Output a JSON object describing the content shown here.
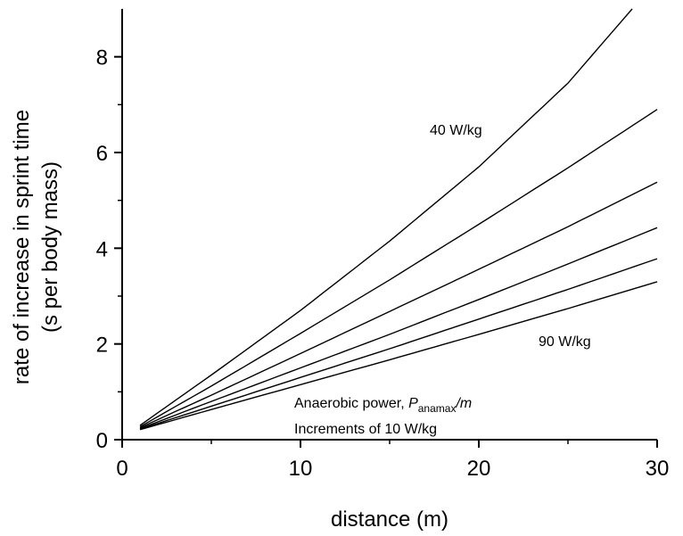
{
  "chart_data": {
    "type": "line",
    "xlabel": "distance (m)",
    "ylabel": [
      "rate of increase in sprint time",
      "(s per body mass)"
    ],
    "xlim": [
      0,
      30
    ],
    "ylim": [
      0,
      9
    ],
    "x_ticks": [
      0,
      10,
      20,
      30
    ],
    "y_ticks": [
      0,
      2,
      4,
      6,
      8
    ],
    "grid": false,
    "legend": "none",
    "series": [
      {
        "x": [
          1,
          5,
          10,
          15,
          20,
          25,
          28.6
        ],
        "y": [
          0.3,
          1.35,
          2.7,
          4.15,
          5.7,
          7.45,
          9.0
        ]
      },
      {
        "x": [
          1,
          5,
          10,
          15,
          20,
          25,
          30
        ],
        "y": [
          0.27,
          1.12,
          2.22,
          3.34,
          4.5,
          5.68,
          6.9
        ]
      },
      {
        "x": [
          1,
          5,
          10,
          15,
          20,
          25,
          30
        ],
        "y": [
          0.25,
          0.93,
          1.8,
          2.68,
          3.56,
          4.45,
          5.38
        ]
      },
      {
        "x": [
          1,
          5,
          10,
          15,
          20,
          25,
          30
        ],
        "y": [
          0.23,
          0.8,
          1.5,
          2.2,
          2.93,
          3.67,
          4.43
        ]
      },
      {
        "x": [
          1,
          5,
          10,
          15,
          20,
          25,
          30
        ],
        "y": [
          0.22,
          0.7,
          1.3,
          1.9,
          2.52,
          3.14,
          3.78
        ]
      },
      {
        "x": [
          1,
          5,
          10,
          15,
          20,
          25,
          30
        ],
        "y": [
          0.21,
          0.63,
          1.15,
          1.67,
          2.2,
          2.74,
          3.3
        ]
      }
    ],
    "annotations": {
      "top_curve": "40 W/kg",
      "bottom_curve": "90 W/kg",
      "power_prefix": "Anaerobic power,  ",
      "power_symbol": "P",
      "power_subscript": "anamax",
      "power_suffix": "/m",
      "increments": "Increments of 10 W/kg"
    }
  }
}
